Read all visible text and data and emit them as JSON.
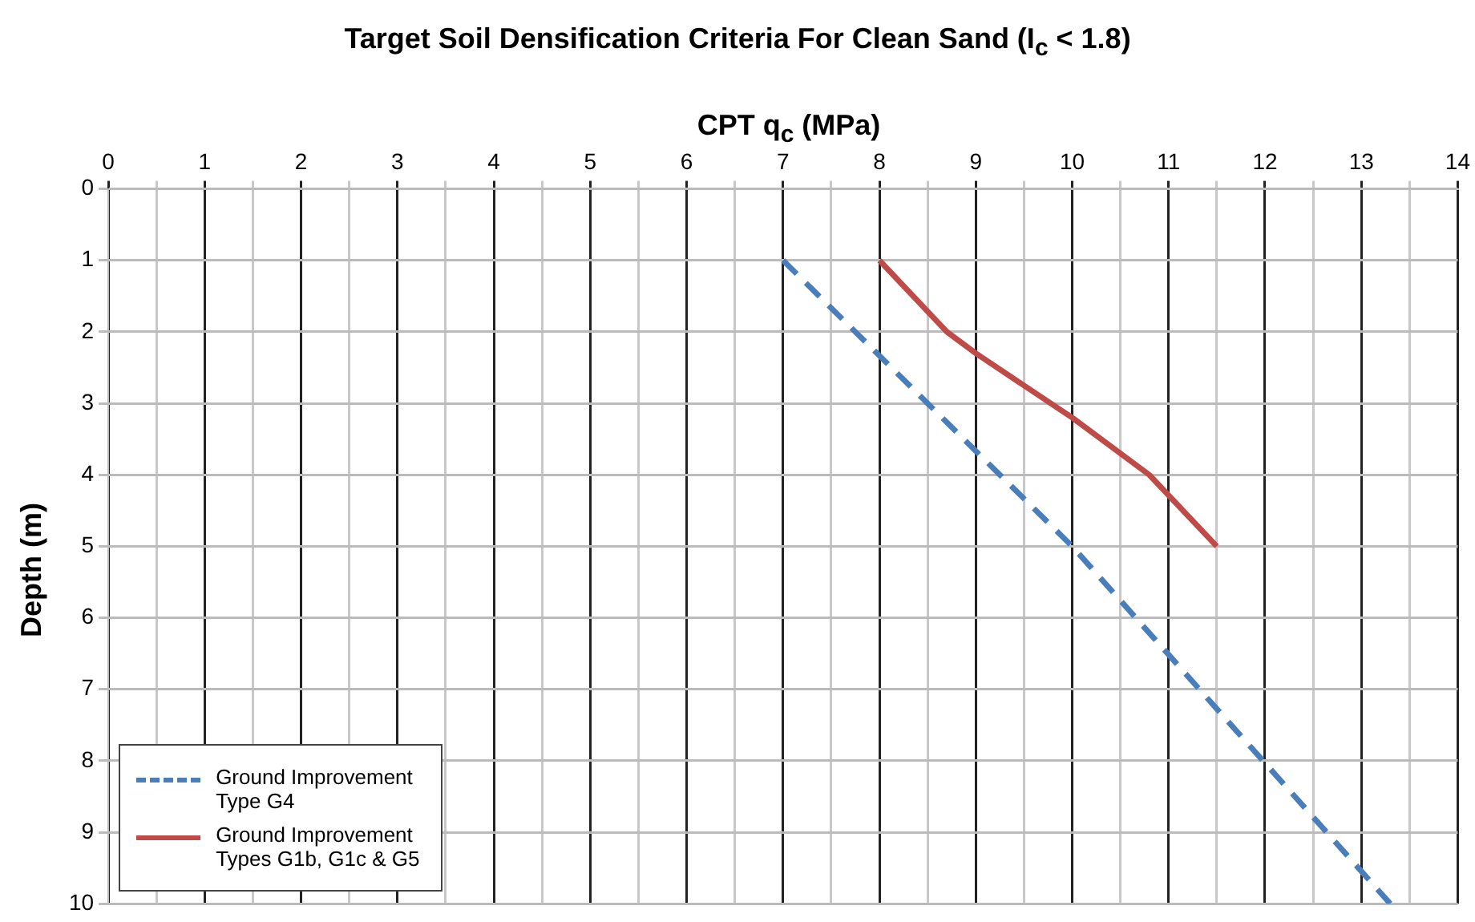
{
  "chart_data": {
    "type": "line",
    "title": "Target Soil Densification Criteria For Clean Sand (I$_{c}$ < 1.8)",
    "xlabel": "CPT q$_{c}$ (MPa)",
    "ylabel": "Depth (m)",
    "xlim": [
      0,
      14
    ],
    "xticks": [
      0,
      {
        "value": 0.5,
        "label": null
      },
      1,
      {
        "value": 1.5,
        "label": null
      },
      2,
      {
        "value": 2.5,
        "label": null
      },
      3,
      {
        "value": 3.5,
        "label": null
      },
      4,
      {
        "value": 4.5,
        "label": null
      },
      5,
      {
        "value": 5.5,
        "label": null
      },
      6,
      {
        "value": 6.5,
        "label": null
      },
      7,
      {
        "value": 7.5,
        "label": null
      },
      8,
      {
        "value": 8.5,
        "label": null
      },
      9,
      {
        "value": 9.5,
        "label": null
      },
      10,
      {
        "value": 10.5,
        "label": null
      },
      11,
      {
        "value": 11.5,
        "label": null
      },
      12,
      {
        "value": 12.5,
        "label": null
      },
      13,
      {
        "value": 13.5,
        "label": null
      },
      14
    ],
    "ylim": [
      10,
      0
    ],
    "yticks": [
      0,
      1,
      2,
      3,
      4,
      5,
      6,
      7,
      8,
      9,
      10
    ],
    "grid": true,
    "legend": "bottom left",
    "marker": "none",
    "series": [
      {
        "name": "Ground Improvement Type G4",
        "color": "#4a7ebb",
        "line_style": "dashed",
        "x": [
          7,
          10,
          13.3
        ],
        "values": [
          1,
          5,
          10
        ]
      },
      {
        "name": "Ground Improvement Types G1b, G1c & G5",
        "color": "#be4b48",
        "line_style": "solid",
        "x": [
          8,
          8.7,
          9,
          10,
          10.8,
          11.5
        ],
        "values": [
          1,
          2,
          2.3,
          3.2,
          4,
          5
        ]
      }
    ]
  }
}
